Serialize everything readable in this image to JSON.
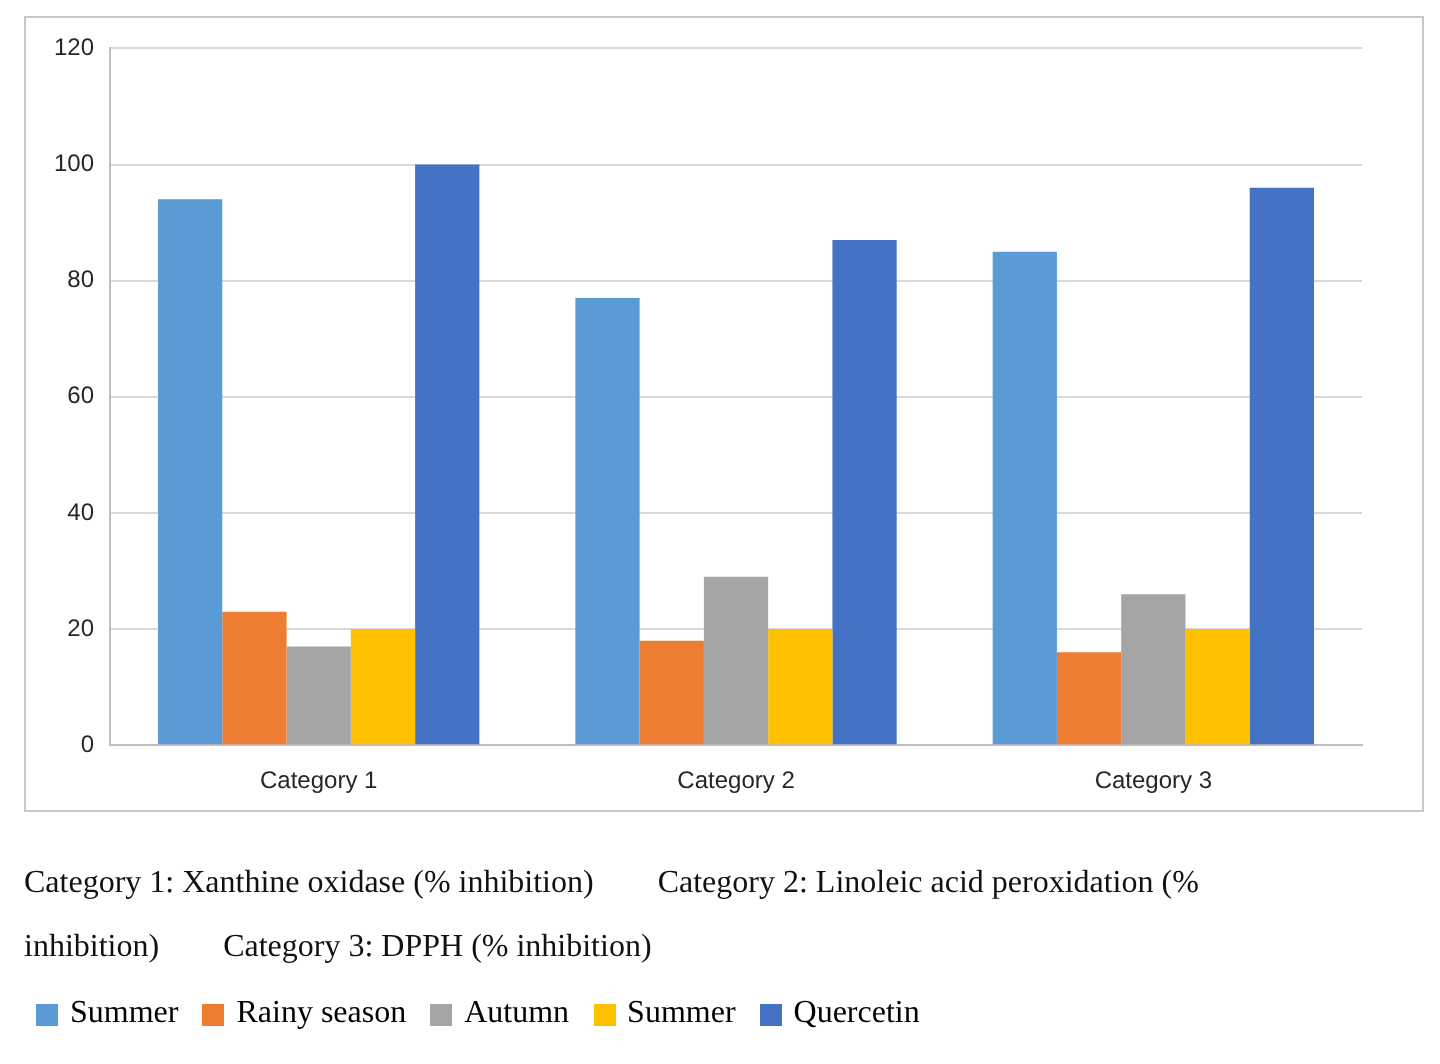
{
  "chart_data": {
    "type": "bar",
    "categories": [
      "Category 1",
      "Category 2",
      "Category 3"
    ],
    "series": [
      {
        "name": "Summer",
        "color": "#5b9bd5",
        "values": [
          94,
          77,
          85
        ]
      },
      {
        "name": "Rainy season",
        "color": "#ed7d31",
        "values": [
          23,
          18,
          16
        ]
      },
      {
        "name": "Autumn",
        "color": "#a5a5a5",
        "values": [
          17,
          29,
          26
        ]
      },
      {
        "name": "Summer",
        "color": "#ffc000",
        "values": [
          20,
          20,
          20
        ]
      },
      {
        "name": "Quercetin",
        "color": "#4472c4",
        "values": [
          100,
          87,
          96
        ]
      }
    ],
    "ylim": [
      0,
      120
    ],
    "yticks": [
      0,
      20,
      40,
      60,
      80,
      100,
      120
    ],
    "grid": "y",
    "legend": "bottom",
    "annotations": [
      "Category 1: Xanthine oxidase (% inhibition)",
      "Category 2: Linoleic acid peroxidation (% inhibition)",
      "Category 3: DPPH (% inhibition)"
    ]
  }
}
